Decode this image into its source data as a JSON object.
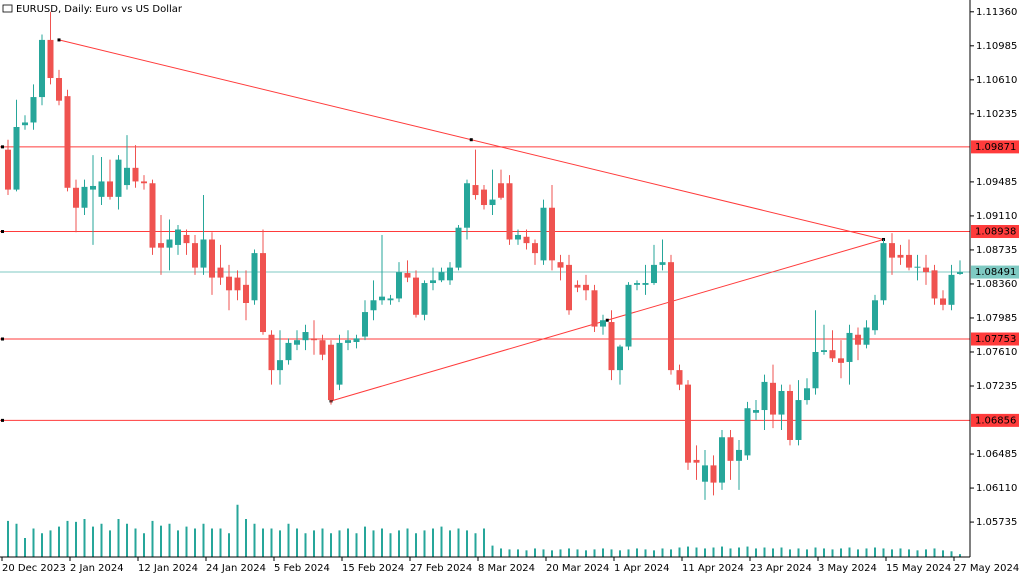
{
  "chart_data": {
    "type": "candlestick",
    "title": "EURUSD, Daily:  Euro vs US Dollar",
    "categories": [
      "20 Dec 2023",
      null,
      null,
      null,
      null,
      null,
      null,
      null,
      "2 Jan 2024",
      null,
      null,
      null,
      null,
      null,
      null,
      null,
      "12 Jan 2024",
      null,
      null,
      null,
      null,
      null,
      null,
      null,
      "24 Jan 2024",
      null,
      null,
      null,
      null,
      null,
      null,
      null,
      "5 Feb 2024",
      null,
      null,
      null,
      null,
      null,
      null,
      null,
      "15 Feb 2024",
      null,
      null,
      null,
      null,
      null,
      null,
      null,
      "27 Feb 2024",
      null,
      null,
      null,
      null,
      null,
      null,
      null,
      "8 Mar 2024",
      null,
      null,
      null,
      null,
      null,
      null,
      null,
      "20 Mar 2024",
      null,
      null,
      null,
      null,
      null,
      null,
      null,
      "1 Apr 2024",
      null,
      null,
      null,
      null,
      null,
      null,
      null,
      "11 Apr 2024",
      null,
      null,
      null,
      null,
      null,
      null,
      null,
      "23 Apr 2024",
      null,
      null,
      null,
      null,
      null,
      null,
      null,
      "3 May 2024",
      null,
      null,
      null,
      null,
      null,
      null,
      null,
      "15 May 2024",
      null,
      null,
      null,
      null,
      null,
      null,
      null,
      "27 May 2024"
    ],
    "open": [
      1.0984,
      1.094,
      1.1011,
      1.1014,
      1.1042,
      1.1105,
      1.1063,
      1.1043,
      1.0942,
      1.092,
      1.094,
      1.0932,
      1.0949,
      1.0932,
      1.0945,
      1.0964,
      1.0949,
      1.0947,
      1.0881,
      1.0876,
      1.0879,
      1.089,
      1.0881,
      1.0854,
      1.0885,
      1.0854,
      1.0844,
      1.0843,
      1.0835,
      1.0818,
      1.087,
      1.078,
      1.0741,
      1.0752,
      1.0769,
      1.0774,
      1.0776,
      1.0774,
      1.0769,
      1.0725,
      1.0771,
      1.0772,
      1.0778,
      1.0807,
      1.0818,
      1.0818,
      1.082,
      1.0848,
      1.0843,
      1.0802,
      1.0837,
      1.084,
      1.084,
      1.0854,
      1.0898,
      1.0945,
      1.094,
      1.0923,
      1.0947,
      1.0947,
      1.0885,
      1.0888,
      1.0881,
      1.0862,
      1.092,
      1.086,
      1.0857,
      1.0835,
      1.0835,
      1.0829,
      1.0789,
      1.0794,
      1.0741,
      1.0767,
      1.0835,
      1.0835,
      1.0837,
      1.0857,
      1.086,
      1.0741,
      1.0725,
      1.0642,
      1.0618,
      1.0636,
      1.0617,
      1.0667,
      1.0641,
      1.0647,
      1.0694,
      1.0697,
      1.0727,
      1.0692,
      1.0718,
      1.0664,
      1.0708,
      1.0721,
      1.0761,
      1.0763,
      1.0754,
      1.075,
      1.078,
      1.0769,
      1.0785,
      1.0818,
      1.0881,
      1.0868,
      1.0868,
      1.0854,
      1.0854,
      1.0851,
      1.082,
      1.0813,
      1.0847
    ],
    "high": [
      1.0995,
      1.1039,
      1.1022,
      1.1056,
      1.1111,
      1.1136,
      1.1072,
      1.105,
      1.0951,
      1.0951,
      1.0978,
      1.0976,
      1.0973,
      1.0978,
      1.1,
      1.0989,
      1.0956,
      1.0951,
      1.0912,
      1.0907,
      1.0901,
      1.0896,
      1.089,
      1.0934,
      1.0893,
      1.0879,
      1.0857,
      1.0851,
      1.0851,
      1.0874,
      1.0896,
      1.0785,
      1.0785,
      1.0776,
      1.0785,
      1.0791,
      1.0796,
      1.078,
      1.0774,
      1.078,
      1.0785,
      1.078,
      1.0818,
      1.084,
      1.089,
      1.0824,
      1.086,
      1.0862,
      1.0851,
      1.084,
      1.0854,
      1.0854,
      1.086,
      1.0901,
      1.0951,
      1.0984,
      1.0945,
      1.0962,
      1.0962,
      1.0956,
      1.0896,
      1.0896,
      1.0885,
      1.0929,
      1.0945,
      1.0868,
      1.0868,
      1.084,
      1.0846,
      1.0835,
      1.0802,
      1.0807,
      1.0769,
      1.0838,
      1.084,
      1.0857,
      1.0879,
      1.0885,
      1.0868,
      1.0747,
      1.073,
      1.0658,
      1.0653,
      1.0647,
      1.0675,
      1.0675,
      1.0664,
      1.0706,
      1.0708,
      1.0736,
      1.0747,
      1.0725,
      1.0725,
      1.073,
      1.0732,
      1.0807,
      1.0791,
      1.0785,
      1.0774,
      1.0791,
      1.0788,
      1.0796,
      1.0824,
      1.0885,
      1.0892,
      1.0879,
      1.0885,
      1.0868,
      1.0868,
      1.0857,
      1.0829,
      1.0857,
      1.0862
    ],
    "low": [
      1.0934,
      1.0938,
      1.1006,
      1.1006,
      1.1033,
      1.1056,
      1.1033,
      1.0938,
      1.0893,
      1.0912,
      1.0879,
      1.0923,
      1.0929,
      1.0918,
      1.094,
      1.0942,
      1.094,
      1.0868,
      1.0846,
      1.0851,
      1.0868,
      1.0868,
      1.0846,
      1.0846,
      1.0824,
      1.0835,
      1.0807,
      1.0818,
      1.0796,
      1.0813,
      1.078,
      1.0725,
      1.0725,
      1.0747,
      1.0763,
      1.0763,
      1.0758,
      1.0752,
      1.0703,
      1.0719,
      1.0763,
      1.0765,
      1.0774,
      1.0796,
      1.0813,
      1.0813,
      1.0816,
      1.0838,
      1.0799,
      1.0796,
      1.0829,
      1.0838,
      1.0835,
      1.0851,
      1.0885,
      1.0929,
      1.0918,
      1.0912,
      1.0929,
      1.0879,
      1.0879,
      1.0874,
      1.0857,
      1.0857,
      1.0851,
      1.084,
      1.0802,
      1.0827,
      1.0818,
      1.0783,
      1.078,
      1.073,
      1.0725,
      1.0763,
      1.0829,
      1.0824,
      1.0835,
      1.0851,
      1.0736,
      1.0719,
      1.0631,
      1.062,
      1.0598,
      1.0603,
      1.0609,
      1.062,
      1.0609,
      1.0642,
      1.0686,
      1.0675,
      1.0677,
      1.0675,
      1.0658,
      1.0658,
      1.0703,
      1.0714,
      1.0758,
      1.075,
      1.0732,
      1.0725,
      1.0752,
      1.0765,
      1.078,
      1.0813,
      1.0846,
      1.0857,
      1.0851,
      1.084,
      1.0835,
      1.0813,
      1.0807,
      1.0807,
      1.0846
    ],
    "close": [
      1.094,
      1.1009,
      1.1014,
      1.1042,
      1.1105,
      1.1063,
      1.1038,
      1.0942,
      1.092,
      1.0943,
      1.0944,
      1.0949,
      1.0932,
      1.0973,
      1.0964,
      1.0949,
      1.0947,
      1.0876,
      1.0876,
      1.0885,
      1.0896,
      1.0881,
      1.0854,
      1.0885,
      1.0843,
      1.0843,
      1.0829,
      1.0829,
      1.0815,
      1.087,
      1.0783,
      1.0741,
      1.0752,
      1.0771,
      1.0774,
      1.0783,
      1.0774,
      1.0758,
      1.0708,
      1.0771,
      1.0774,
      1.0776,
      1.0805,
      1.0818,
      1.0822,
      1.082,
      1.0849,
      1.0843,
      1.0802,
      1.0837,
      1.084,
      1.0849,
      1.0854,
      1.0898,
      1.0947,
      1.0934,
      1.0923,
      1.0929,
      1.0931,
      1.0885,
      1.089,
      1.0881,
      1.087,
      1.092,
      1.0862,
      1.0854,
      1.0807,
      1.0832,
      1.0829,
      1.0789,
      1.0796,
      1.0741,
      1.0767,
      1.0835,
      1.0837,
      1.0837,
      1.0857,
      1.086,
      1.0741,
      1.0725,
      1.0639,
      1.0639,
      1.0636,
      1.0617,
      1.0667,
      1.0641,
      1.0653,
      1.0699,
      1.0697,
      1.0728,
      1.0692,
      1.0718,
      1.0664,
      1.0708,
      1.0721,
      1.0761,
      1.0763,
      1.0754,
      1.0749,
      1.0782,
      1.0769,
      1.0788,
      1.0818,
      1.0881,
      1.0865,
      1.0865,
      1.0854,
      1.0855,
      1.0849,
      1.082,
      1.0813,
      1.0846,
      1.0849
    ],
    "volume": [
      38,
      35,
      20,
      30,
      25,
      28,
      32,
      38,
      37,
      40,
      32,
      35,
      28,
      40,
      35,
      30,
      25,
      38,
      33,
      35,
      28,
      32,
      30,
      35,
      30,
      30,
      25,
      55,
      40,
      35,
      30,
      30,
      28,
      35,
      30,
      25,
      28,
      30,
      25,
      28,
      30,
      25,
      32,
      28,
      30,
      25,
      28,
      30,
      25,
      28,
      30,
      32,
      28,
      30,
      28,
      25,
      30,
      12,
      9,
      8,
      8,
      7,
      9,
      8,
      7,
      8,
      9,
      8,
      7,
      8,
      9,
      8,
      7,
      8,
      9,
      8,
      7,
      9,
      8,
      10,
      11,
      10,
      9,
      10,
      11,
      9,
      10,
      11,
      9,
      10,
      9,
      10,
      8,
      9,
      8,
      10,
      9,
      8,
      9,
      10,
      8,
      9,
      10,
      9,
      8,
      9,
      8,
      7,
      8,
      9,
      7,
      6,
      3
    ],
    "bull_color": "#26a69a",
    "bear_color": "#ef5350",
    "volume_color": "#26a69a",
    "ylim": [
      1.0535,
      1.1149
    ],
    "yticks": [
      {
        "value": 1.1136,
        "label": "1.11360"
      },
      1.10985,
      {
        "value": 1.1061,
        "label": "1.10610"
      },
      1.10235,
      1.09485,
      {
        "value": 1.0911,
        "label": "1.09110"
      },
      1.08735,
      {
        "value": 1.0836,
        "label": "1.08360"
      },
      1.07985,
      {
        "value": 1.0761,
        "label": "1.07610"
      },
      1.07235,
      1.06485,
      {
        "value": 1.0611,
        "label": "1.06110"
      },
      1.05735
    ],
    "levels": [
      1.09871,
      1.08938,
      1.07753,
      1.06856
    ],
    "level_color": "#ff3b3b",
    "current_price": 1.08491,
    "current_color": "#7fcac3",
    "trendlines": [
      {
        "x": [
          6,
          103
        ],
        "y": [
          1.1105,
          1.0885
        ]
      },
      {
        "x": [
          38,
          103
        ],
        "y": [
          1.0707,
          1.0885
        ]
      }
    ]
  }
}
